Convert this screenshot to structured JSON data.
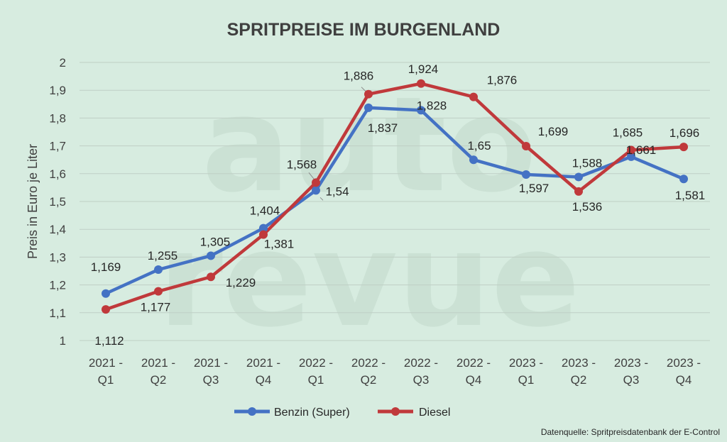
{
  "watermark": {
    "line1": "auto",
    "line2": "revue"
  },
  "source": "Datenquelle: Spritpreisdatenbank der E-Control",
  "chart_data": {
    "type": "line",
    "title": "SPRITPREISE IM BURGENLAND",
    "xlabel": "",
    "ylabel": "Preis in Euro je Liter",
    "ylim": [
      1,
      2
    ],
    "yticks": [
      1,
      1.1,
      1.2,
      1.3,
      1.4,
      1.5,
      1.6,
      1.7,
      1.8,
      1.9,
      2
    ],
    "ytick_labels": [
      "1",
      "1,1",
      "1,2",
      "1,3",
      "1,4",
      "1,5",
      "1,6",
      "1,7",
      "1,8",
      "1,9",
      "2"
    ],
    "grid": true,
    "legend": "bottom",
    "categories": [
      [
        "2021 -",
        "Q1"
      ],
      [
        "2021 -",
        "Q2"
      ],
      [
        "2021 -",
        "Q3"
      ],
      [
        "2021 -",
        "Q4"
      ],
      [
        "2022 -",
        "Q1"
      ],
      [
        "2022 -",
        "Q2"
      ],
      [
        "2022 -",
        "Q3"
      ],
      [
        "2022 -",
        "Q4"
      ],
      [
        "2023 -",
        "Q1"
      ],
      [
        "2023 -",
        "Q2"
      ],
      [
        "2023 -",
        "Q3"
      ],
      [
        "2023 -",
        "Q4"
      ]
    ],
    "series": [
      {
        "name": "Benzin (Super)",
        "color": "#4472c4",
        "values": [
          1.169,
          1.255,
          1.305,
          1.404,
          1.54,
          1.837,
          1.828,
          1.65,
          1.597,
          1.588,
          1.661,
          1.581
        ],
        "labels": [
          "1,169",
          "1,255",
          "1,305",
          "1,404",
          "1,54",
          "1,837",
          "1,828",
          "1,65",
          "1,597",
          "1,588",
          "1,661",
          "1,581"
        ]
      },
      {
        "name": "Diesel",
        "color": "#c0393b",
        "values": [
          1.112,
          1.177,
          1.229,
          1.381,
          1.568,
          1.886,
          1.924,
          1.876,
          1.699,
          1.536,
          1.685,
          1.696
        ],
        "labels": [
          "1,112",
          "1,177",
          "1,229",
          "1,381",
          "1,568",
          "1,886",
          "1,924",
          "1,876",
          "1,699",
          "1,536",
          "1,685",
          "1,696"
        ]
      }
    ]
  }
}
